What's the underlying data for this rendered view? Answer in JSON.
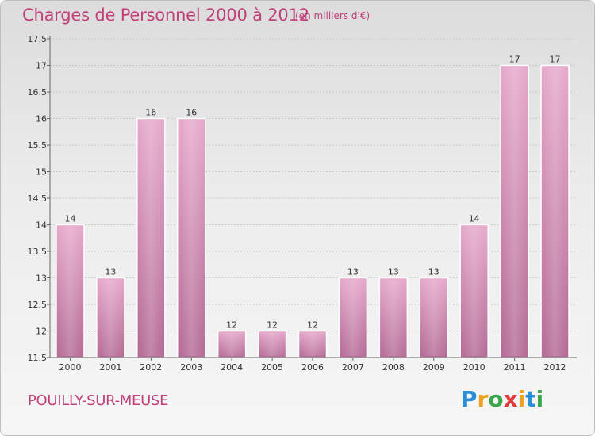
{
  "header": {
    "title": "Charges de Personnel 2000 à 2012",
    "subtitle": "(en milliers d'€)"
  },
  "footer": {
    "location": "POUILLY-SUR-MEUSE",
    "logo": {
      "letters": [
        {
          "char": "P",
          "color": "#2a8fd6"
        },
        {
          "char": "r",
          "color": "#f0a020"
        },
        {
          "char": "o",
          "color": "#3aa84a"
        },
        {
          "char": "x",
          "color": "#e03a3a"
        },
        {
          "char": "i",
          "color": "#f0a020"
        },
        {
          "char": "t",
          "color": "#2a8fd6"
        },
        {
          "char": "i",
          "color": "#3aa84a"
        }
      ]
    }
  },
  "chart_data": {
    "type": "bar",
    "categories": [
      "2000",
      "2001",
      "2002",
      "2003",
      "2004",
      "2005",
      "2006",
      "2007",
      "2008",
      "2009",
      "2010",
      "2011",
      "2012"
    ],
    "values": [
      14,
      13,
      16,
      16,
      12,
      12,
      12,
      13,
      13,
      13,
      14,
      17,
      17
    ],
    "value_labels": [
      "14",
      "13",
      "16",
      "16",
      "12",
      "12",
      "12",
      "13",
      "13",
      "13",
      "14",
      "17",
      "17"
    ],
    "y_ticks": [
      11.5,
      12,
      12.5,
      13,
      13.5,
      14,
      14.5,
      15,
      15.5,
      16,
      16.5,
      17,
      17.5
    ],
    "y_tick_labels": [
      "11.5",
      "12",
      "12.5",
      "13",
      "13.5",
      "14",
      "14.5",
      "15",
      "15.5",
      "16",
      "16.5",
      "17",
      "17.5"
    ],
    "ylim": [
      11.5,
      17.5
    ],
    "grid": true,
    "bar_color": "#d98db5",
    "grid_color": "#c8c8c8"
  }
}
